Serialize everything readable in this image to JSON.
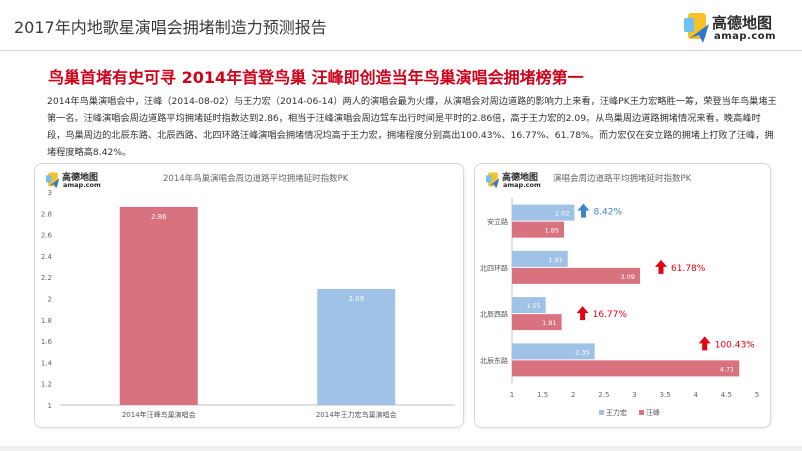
{
  "header": {
    "title": "2017年内地歌星演唱会拥堵制造力预测报告",
    "logo_cn": "高德地图",
    "logo_en": "amap.com"
  },
  "headline": "鸟巢首堵有史可寻 2014年首登鸟巢 汪峰即创造当年鸟巢演唱会拥堵榜第一",
  "body": "2014年鸟巢演唱会中，汪峰（2014-08-02）与王力宏（2014-06-14）两人的演唱会最为火爆，从演唱会对周边道路的影响力上来看，汪峰PK王力宏略胜一筹，荣登当年鸟巢堵王第一名。汪峰演唱会周边道路平均拥堵延时指数达到2.86，相当于汪峰演唱会周边驾车出行时间是平时的2.86倍，高于王力宏的2.09。从鸟巢周边道路拥堵情况来看，晚高峰时段，鸟巢周边的北辰东路、北辰西路、北四环路汪峰演唱会拥堵情况均高于王力宏，拥堵程度分别高出100.43%、16.77%、61.78%。而力宏仅在安立路的拥堵上打败了汪峰，拥堵程度略高8.42%。",
  "colors": {
    "accent_red": "#d0021b",
    "wangfeng_bar": "#d9727f",
    "wanglihong_bar": "#9fc2e6",
    "up_arrow_red": "#e60012",
    "up_arrow_blue": "#3f86c8"
  },
  "chart_data": [
    {
      "type": "bar",
      "title": "2014年鸟巢演唱会周边道路平均拥堵延时指数PK",
      "categories": [
        "2014年汪峰鸟巢演唱会",
        "2014年王力宏鸟巢演唱会"
      ],
      "values": [
        2.86,
        2.09
      ],
      "value_labels": [
        "2.86",
        "2.09"
      ],
      "ylim": [
        1,
        3
      ],
      "yticks": [
        "1",
        "1.2",
        "1.4",
        "1.6",
        "1.8",
        "2",
        "2.2",
        "2.4",
        "2.6",
        "2.8",
        "3"
      ],
      "grid": false,
      "logo_cn": "高德地图",
      "logo_en": "amap.com"
    },
    {
      "type": "bar",
      "orientation": "horizontal",
      "title": "演唱会周边道路平均拥堵延时指数PK",
      "categories": [
        "安立路",
        "北四环路",
        "北辰西路",
        "北辰东路"
      ],
      "series": [
        {
          "name": "王力宏",
          "values": [
            2.02,
            1.91,
            1.55,
            2.35
          ]
        },
        {
          "name": "汪峰",
          "values": [
            1.85,
            3.09,
            1.81,
            4.71
          ]
        }
      ],
      "value_labels": {
        "王力宏": [
          "2.02",
          "1.91",
          "1.55",
          "2.35"
        ],
        "汪峰": [
          "1.85",
          "3.09",
          "1.81",
          "4.71"
        ]
      },
      "annotations": [
        {
          "road": "安立路",
          "text": "8.42%",
          "winner": "王力宏"
        },
        {
          "road": "北四环路",
          "text": "61.78%",
          "winner": "汪峰"
        },
        {
          "road": "北辰西路",
          "text": "16.77%",
          "winner": "汪峰"
        },
        {
          "road": "北辰东路",
          "text": "100.43%",
          "winner": "汪峰"
        }
      ],
      "xlim": [
        1,
        5
      ],
      "xticks": [
        "1",
        "1.5",
        "2",
        "2.5",
        "3",
        "3.5",
        "4",
        "4.5",
        "5"
      ],
      "legend_position": "bottom",
      "grid": false,
      "logo_cn": "高德地图",
      "logo_en": "amap.com"
    }
  ]
}
